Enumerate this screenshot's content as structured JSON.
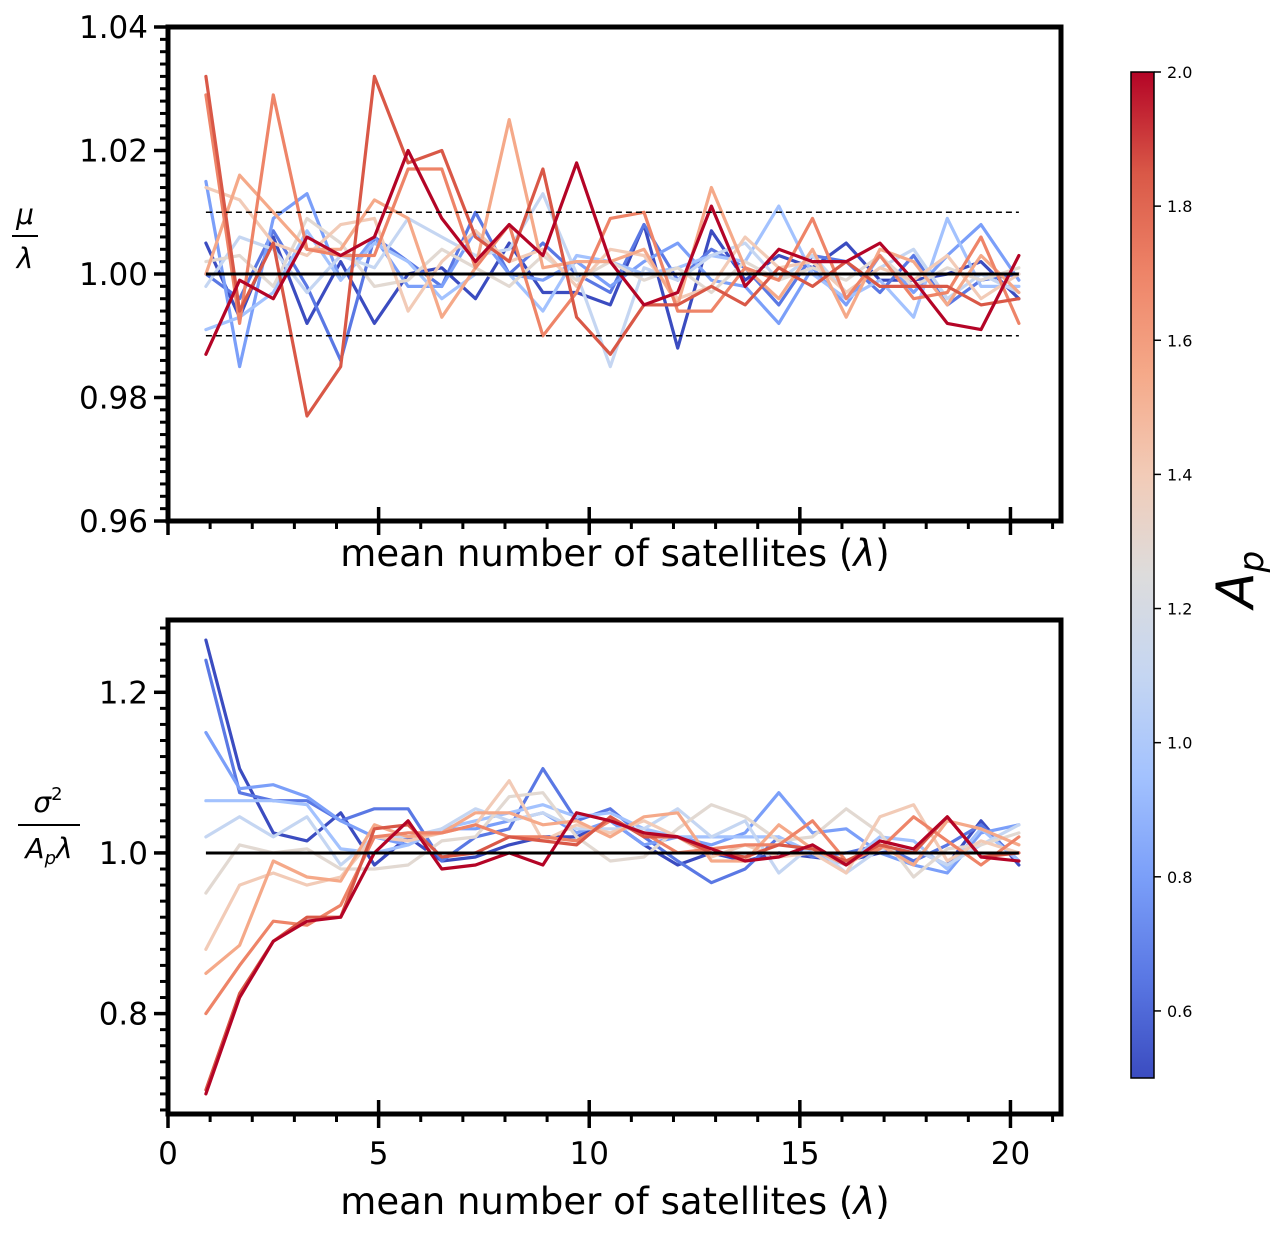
{
  "chart_data": [
    {
      "type": "line",
      "id": "mean-ratio",
      "ylabel_num": "μ",
      "ylabel_den": "λ",
      "xlabel_text": "mean number of satellites (",
      "xlabel_var": "λ",
      "xlabel_close": ")",
      "xlim": [
        0,
        21.2
      ],
      "ylim": [
        0.96,
        1.04
      ],
      "yticks": [
        0.96,
        0.98,
        1.0,
        1.02,
        1.04
      ],
      "ytick_labels": [
        "0.96",
        "0.98",
        "1.00",
        "1.02",
        "1.04"
      ],
      "xticks": [
        0,
        5,
        10,
        15,
        20
      ],
      "xtick_labels_visible": false,
      "reference_line": 1.0,
      "band_lines": [
        0.99,
        1.01
      ],
      "x": [
        0.9,
        1.7,
        2.5,
        3.3,
        4.1,
        4.9,
        5.7,
        6.5,
        7.3,
        8.1,
        8.9,
        9.7,
        10.5,
        11.3,
        12.1,
        12.9,
        13.7,
        14.5,
        15.3,
        16.1,
        16.9,
        17.7,
        18.5,
        19.3,
        20.2
      ],
      "series": [
        {
          "ap": 0.5,
          "color": "#3b4cc0",
          "values": [
            1.005,
            0.993,
            1.006,
            0.992,
            1.002,
            0.992,
            1.0,
            1.001,
            0.996,
            1.005,
            0.997,
            0.997,
            0.995,
            1.008,
            0.988,
            1.007,
            0.999,
            1.003,
            1.001,
            1.005,
            0.999,
            0.999,
            1.0,
            1.002,
            0.996
          ]
        },
        {
          "ap": 0.65,
          "color": "#5a78e4",
          "values": [
            1.0,
            0.996,
            1.007,
            0.998,
            0.986,
            1.006,
            1.002,
            0.998,
            1.01,
            1.0,
            1.005,
            1.0,
            0.997,
            1.008,
            0.999,
            1.004,
            1.001,
            0.995,
            1.003,
            1.002,
            0.997,
            1.003,
            0.995,
            0.999,
            1.0
          ]
        },
        {
          "ap": 0.8,
          "color": "#7b9ff9",
          "values": [
            1.015,
            0.985,
            1.009,
            1.013,
            0.999,
            1.006,
            0.998,
            0.998,
            1.007,
            1.0,
            0.999,
            1.002,
            0.998,
            1.002,
            1.005,
            0.999,
            0.998,
            0.992,
            1.001,
            0.995,
            1.003,
            0.997,
            1.003,
            1.008,
            0.999
          ]
        },
        {
          "ap": 0.95,
          "color": "#a3c2fe",
          "values": [
            0.991,
            0.993,
            0.997,
            1.007,
            0.999,
            1.005,
            1.002,
            0.996,
            1.0,
            1.0,
            0.994,
            1.003,
            1.002,
            1.0,
            1.001,
            1.003,
            1.002,
            1.011,
            1.0,
            0.996,
            0.999,
            0.993,
            1.009,
            0.998,
            0.998
          ]
        },
        {
          "ap": 1.1,
          "color": "#c5d6f2",
          "values": [
            0.998,
            1.006,
            1.004,
            0.997,
            1.003,
            1.001,
            1.009,
            1.006,
            1.003,
            1.004,
            1.013,
            1.0,
            0.985,
            1.001,
            0.999,
            1.003,
            1.005,
            0.999,
            1.003,
            0.997,
            1.001,
            1.004,
            0.996,
            1.0,
            0.997
          ]
        },
        {
          "ap": 1.25,
          "color": "#e2d9d2",
          "values": [
            1.002,
            1.003,
            0.998,
            1.009,
            1.005,
            0.998,
            0.999,
            1.004,
            1.001,
            0.998,
            1.003,
            0.999,
            1.002,
            0.999,
            1.001,
            0.997,
            1.002,
            0.999,
            1.001,
            0.999,
            1.003,
            0.998,
            1.001,
            0.999,
            1.001
          ]
        },
        {
          "ap": 1.4,
          "color": "#f2cbb7",
          "values": [
            1.014,
            1.012,
            1.005,
            1.003,
            1.008,
            1.009,
            0.994,
            1.002,
            1.007,
            1.002,
            1.004,
            0.998,
            1.004,
            1.003,
            0.996,
            0.998,
            1.006,
            1.001,
            1.002,
            0.997,
            1.001,
            0.999,
            1.003,
            0.996,
            1.0
          ]
        },
        {
          "ap": 1.55,
          "color": "#f5a989",
          "values": [
            1.0,
            1.016,
            1.01,
            1.004,
            1.004,
            1.012,
            1.009,
            0.993,
            1.001,
            1.025,
            1.001,
            1.002,
            1.002,
            1.004,
            0.995,
            1.014,
            1.001,
            0.996,
            1.004,
            0.993,
            1.004,
            1.002,
            0.995,
            1.003,
            0.997
          ]
        },
        {
          "ap": 1.7,
          "color": "#ee8468",
          "values": [
            1.029,
            0.992,
            1.029,
            1.004,
            1.003,
            1.003,
            1.017,
            1.017,
            1.001,
            1.008,
            0.99,
            0.997,
            1.009,
            1.01,
            0.994,
            0.994,
            1.001,
            0.999,
            1.009,
            0.996,
            1.003,
            0.996,
            0.997,
            1.006,
            0.992
          ]
        },
        {
          "ap": 1.85,
          "color": "#d95847",
          "values": [
            1.032,
            0.994,
            1.005,
            0.977,
            0.985,
            1.032,
            1.018,
            1.02,
            1.006,
            1.002,
            1.017,
            0.993,
            0.987,
            0.995,
            0.995,
            0.998,
            0.995,
            1.001,
            0.998,
            1.002,
            0.998,
            0.998,
            0.998,
            0.995,
            0.996
          ]
        },
        {
          "ap": 2.0,
          "color": "#b40426",
          "values": [
            0.987,
            0.999,
            0.996,
            1.006,
            1.003,
            1.006,
            1.02,
            1.009,
            1.002,
            1.008,
            1.003,
            1.018,
            1.002,
            0.995,
            0.997,
            1.011,
            0.998,
            1.004,
            1.002,
            1.002,
            1.005,
            0.999,
            0.992,
            0.991,
            1.003
          ]
        }
      ]
    },
    {
      "type": "line",
      "id": "variance-ratio",
      "ylabel_num": "σ²",
      "ylabel_den": "A_pλ",
      "xlabel_text": "mean number of satellites (",
      "xlabel_var": "λ",
      "xlabel_close": ")",
      "xlim": [
        0,
        21.2
      ],
      "ylim": [
        0.675,
        1.29
      ],
      "yticks": [
        0.8,
        1.0,
        1.2
      ],
      "ytick_labels": [
        "0.8",
        "1.0",
        "1.2"
      ],
      "xticks": [
        0,
        5,
        10,
        15,
        20
      ],
      "xtick_labels": [
        "0",
        "5",
        "10",
        "15",
        "20"
      ],
      "reference_line": 1.0,
      "x": [
        0.9,
        1.7,
        2.5,
        3.3,
        4.1,
        4.9,
        5.7,
        6.5,
        7.3,
        8.1,
        8.9,
        9.7,
        10.5,
        11.3,
        12.1,
        12.9,
        13.7,
        14.5,
        15.3,
        16.1,
        16.9,
        17.7,
        18.5,
        19.3,
        20.2
      ],
      "series": [
        {
          "ap": 0.5,
          "color": "#3b4cc0",
          "values": [
            1.265,
            1.105,
            1.025,
            1.015,
            1.05,
            0.985,
            1.02,
            0.99,
            0.995,
            1.01,
            1.02,
            1.02,
            1.04,
            1.01,
            0.985,
            1.0,
            0.99,
            1.0,
            0.995,
            0.99,
            1.0,
            1.005,
            0.985,
            1.04,
            0.985
          ]
        },
        {
          "ap": 0.65,
          "color": "#5a78e4",
          "values": [
            1.24,
            1.075,
            1.065,
            1.065,
            1.04,
            1.055,
            1.055,
            0.99,
            1.02,
            1.03,
            1.105,
            1.04,
            1.055,
            1.02,
            0.99,
            0.963,
            0.98,
            1.02,
            0.995,
            1.0,
            1.01,
            0.99,
            1.01,
            1.035,
            0.99
          ]
        },
        {
          "ap": 0.8,
          "color": "#7b9ff9",
          "values": [
            1.15,
            1.08,
            1.085,
            1.07,
            1.04,
            1.02,
            1.01,
            1.03,
            1.03,
            1.04,
            1.05,
            1.025,
            1.04,
            1.01,
            1.02,
            1.01,
            1.025,
            1.075,
            1.025,
            1.03,
            1.0,
            0.985,
            0.975,
            1.025,
            1.035
          ]
        },
        {
          "ap": 0.95,
          "color": "#a3c2fe",
          "values": [
            1.065,
            1.065,
            1.065,
            1.06,
            1.005,
            1.0,
            1.01,
            1.03,
            1.04,
            1.05,
            1.06,
            1.045,
            1.05,
            1.03,
            1.02,
            1.02,
            1.02,
            1.02,
            1.0,
            0.985,
            1.02,
            1.015,
            0.98,
            1.03,
            0.99
          ]
        },
        {
          "ap": 1.1,
          "color": "#c5d6f2",
          "values": [
            1.02,
            1.045,
            1.02,
            1.045,
            0.985,
            1.02,
            1.02,
            1.03,
            1.055,
            1.04,
            1.05,
            1.03,
            1.03,
            1.03,
            1.055,
            1.02,
            1.04,
            0.975,
            1.01,
            0.975,
            1.005,
            1.005,
            0.985,
            1.01,
            1.035
          ]
        },
        {
          "ap": 1.25,
          "color": "#e2d9d2",
          "values": [
            0.95,
            1.01,
            1.0,
            1.005,
            0.98,
            0.98,
            0.985,
            1.015,
            1.02,
            1.07,
            1.075,
            1.02,
            0.99,
            0.995,
            1.03,
            1.06,
            1.045,
            1.015,
            1.02,
            1.055,
            1.025,
            0.97,
            1.005,
            1.01,
            1.025
          ]
        },
        {
          "ap": 1.4,
          "color": "#f2cbb7",
          "values": [
            0.88,
            0.96,
            0.975,
            0.96,
            0.97,
            1.02,
            1.015,
            1.025,
            1.035,
            1.09,
            1.015,
            1.035,
            1.025,
            1.04,
            1.02,
            0.995,
            1.01,
            0.995,
            1.0,
            0.975,
            1.045,
            1.06,
            0.99,
            1.015,
            1.0
          ]
        },
        {
          "ap": 1.55,
          "color": "#f5a989",
          "values": [
            0.85,
            0.885,
            0.99,
            0.97,
            0.965,
            1.035,
            1.02,
            1.025,
            1.05,
            1.05,
            1.035,
            1.04,
            1.02,
            1.045,
            1.05,
            0.99,
            0.99,
            1.035,
            1.005,
            0.985,
            1.01,
            0.985,
            1.04,
            1.03,
            1.01
          ]
        },
        {
          "ap": 1.7,
          "color": "#ee8468",
          "values": [
            0.8,
            0.86,
            0.915,
            0.91,
            0.935,
            1.02,
            1.025,
            1.025,
            1.035,
            1.02,
            1.02,
            1.015,
            1.04,
            1.025,
            1.0,
            1.005,
            1.01,
            1.01,
            1.04,
            0.99,
            1.005,
            1.045,
            1.015,
            0.985,
            1.02
          ]
        },
        {
          "ap": 1.85,
          "color": "#d95847",
          "values": [
            0.705,
            0.825,
            0.89,
            0.92,
            0.92,
            1.03,
            1.035,
            0.995,
            1.0,
            1.02,
            1.015,
            1.01,
            1.045,
            1.02,
            1.02,
            1.0,
            0.995,
            1.01,
            1.005,
            0.99,
            1.01,
            1.0,
            1.045,
            0.995,
            1.0
          ]
        },
        {
          "ap": 2.0,
          "color": "#b40426",
          "values": [
            0.7,
            0.82,
            0.89,
            0.915,
            0.92,
            1.0,
            1.04,
            0.98,
            0.985,
            1.0,
            0.985,
            1.05,
            1.04,
            1.025,
            1.02,
            1.005,
            0.99,
            0.995,
            1.01,
            0.985,
            1.015,
            1.005,
            1.045,
            0.995,
            0.99
          ]
        }
      ]
    }
  ],
  "colorbar": {
    "label_main": "A",
    "label_sub": "p",
    "range": [
      0.5,
      2.0
    ],
    "ticks": [
      0.6,
      0.8,
      1.0,
      1.2,
      1.4,
      1.6,
      1.8,
      2.0
    ],
    "tick_labels": [
      "0.6",
      "0.8",
      "1.0",
      "1.2",
      "1.4",
      "1.6",
      "1.8",
      "2.0"
    ],
    "colormap": "coolwarm",
    "stops": [
      "#3b4cc0",
      "#5a78e4",
      "#7b9ff9",
      "#a3c2fe",
      "#c5d6f2",
      "#dddcdc",
      "#f2cbb7",
      "#f5a989",
      "#ee8468",
      "#d95847",
      "#b40426"
    ]
  }
}
